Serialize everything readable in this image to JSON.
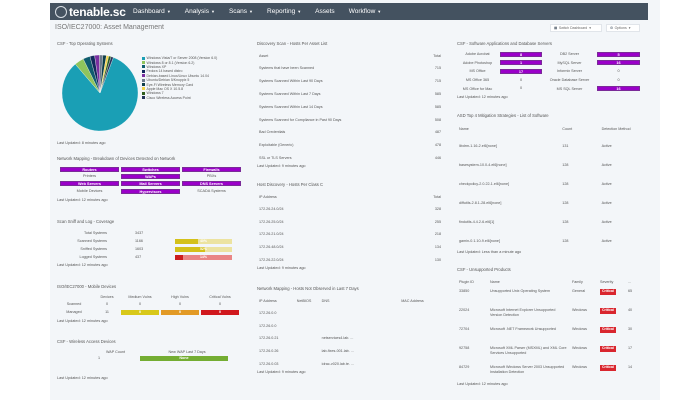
{
  "navbar": {
    "logo": "tenable.sc",
    "items": [
      {
        "label": "Dashboard",
        "caret": true
      },
      {
        "label": "Analysis",
        "caret": true
      },
      {
        "label": "Scans",
        "caret": true
      },
      {
        "label": "Reporting",
        "caret": true
      },
      {
        "label": "Assets",
        "caret": false
      },
      {
        "label": "Workflow",
        "caret": true
      }
    ]
  },
  "page": {
    "title": "ISO/IEC27000: Asset Management",
    "switch_dashboard": "Switch Dashboard",
    "options": "Options"
  },
  "os_panel": {
    "title": "CSF - Top Operating Systems",
    "legend": [
      {
        "label": "Windows Vista/7 or Server 2008 (Version 6.0)",
        "color": "#1a9fb5"
      },
      {
        "label": "Windows 8 or 8.1 (Version 6.2)",
        "color": "#8fc45c"
      },
      {
        "label": "Windows XP",
        "color": "#0f5c6e"
      },
      {
        "label": "Fedora 14 based distro",
        "color": "#12295c"
      },
      {
        "label": "Debian-based Linux/Linux Ubuntu 14.04",
        "color": "#7a2fa0"
      },
      {
        "label": "Ubuntu/Debian 5/Knoppix 5",
        "color": "#6d7a8a"
      },
      {
        "label": "Eye-Fi Wireless Memory Card",
        "color": "#0f3e4a"
      },
      {
        "label": "Apple Mac OS X 10.5.8",
        "color": "#f3d34a"
      },
      {
        "label": "Windows 7",
        "color": "#2f5e1e"
      },
      {
        "label": "Cisco Wireless Access Point",
        "color": "#25335a"
      }
    ],
    "updated": "Last Updated: 8 minutes ago"
  },
  "chart_data": {
    "type": "pie",
    "title": "CSF - Top Operating Systems",
    "categories": [
      "Windows Vista/7 or Server 2008 (Version 6.0)",
      "Windows 8 or 8.1 (Version 6.2)",
      "Windows XP",
      "Fedora 14 based distro",
      "Debian-based Linux/Linux Ubuntu 14.04",
      "Ubuntu/Debian 5/Knoppix 5",
      "Eye-Fi Wireless Memory Card",
      "Apple Mac OS X 10.5.8",
      "Windows 7",
      "Cisco Wireless Access Point"
    ],
    "values": [
      83,
      4,
      3,
      2,
      2,
      1.5,
      1.5,
      1,
      1,
      1
    ],
    "legend_position": "right"
  },
  "netmap_panel": {
    "title": "Network Mapping - Breakdown of Devices Detected on Network",
    "cells": [
      {
        "label": "Routers",
        "active": true
      },
      {
        "label": "Switches",
        "active": true
      },
      {
        "label": "Firewalls",
        "active": true
      },
      {
        "label": "Printers",
        "active": false
      },
      {
        "label": "WAPs",
        "active": true
      },
      {
        "label": "PBXs",
        "active": false
      },
      {
        "label": "Web Servers",
        "active": true
      },
      {
        "label": "Mail Servers",
        "active": true
      },
      {
        "label": "DNS Servers",
        "active": true
      },
      {
        "label": "Mobile Devices",
        "active": false
      },
      {
        "label": "Hypervisors",
        "active": true
      },
      {
        "label": "SCADA Systems",
        "active": false
      }
    ],
    "updated": "Last Updated: 12 minutes ago"
  },
  "coverage_panel": {
    "title": "Scan Sniff and Log - Coverage",
    "rows": [
      {
        "label": "Total Systems",
        "value": "3437",
        "pct": null
      },
      {
        "label": "Scanned Systems",
        "value": "1166",
        "pct": "40%",
        "fill": 0.4,
        "color": "#d4c11a",
        "bg": "#ece3a0"
      },
      {
        "label": "Sniffed Systems",
        "value": "1603",
        "pct": "52%",
        "fill": 0.52,
        "color": "#d4c11a",
        "bg": "#ece3a0"
      },
      {
        "label": "Logged Systems",
        "value": "437",
        "pct": "14%",
        "fill": 0.14,
        "color": "#cc1d1d",
        "bg": "#e98585"
      }
    ],
    "updated": "Last Updated: 12 minutes ago"
  },
  "mobile_panel": {
    "title": "ISO/IEC27000 - Mobile Devices",
    "headers": [
      "",
      "Devices",
      "Medium Vulns",
      "High Vulns",
      "Critical Vulns"
    ],
    "rows": [
      {
        "label": "Scanned",
        "devices": "0",
        "medium": "0",
        "high": "0",
        "critical": "0",
        "colored": false
      },
      {
        "label": "Managed",
        "devices": "11",
        "medium": "0",
        "high": "0",
        "critical": "0",
        "colored": true
      }
    ],
    "colors": {
      "medium": "#d8c81a",
      "high": "#e29a26",
      "critical": "#d0181e"
    },
    "updated": "Last Updated: 12 minutes ago"
  },
  "wireless_panel": {
    "title": "CSF - Wireless Access Devices",
    "col1": "WAP Count",
    "col2": "New WAP Last 7 Days",
    "count": "1",
    "new_label": "None",
    "updated": "Last Updated: 12 minutes ago"
  },
  "discovery_panel": {
    "title": "Discovery Scan - Hosts Per Asset List",
    "headers": [
      "Asset",
      "Total"
    ],
    "rows": [
      {
        "asset": "Systems that have been Scanned",
        "total": "715"
      },
      {
        "asset": "Systems Scanned Within Last 90 Days",
        "total": "715"
      },
      {
        "asset": "Systems Scanned Within Last 7 Days",
        "total": "585"
      },
      {
        "asset": "Systems Scanned Within Last 14 Days",
        "total": "585"
      },
      {
        "asset": "Systems Scanned for Compliance in Past 90 Days",
        "total": "508"
      },
      {
        "asset": "Bad Credentials",
        "total": "487"
      },
      {
        "asset": "Exploitable (Generic)",
        "total": "478"
      },
      {
        "asset": "SSL or TLS Servers",
        "total": "446"
      }
    ],
    "updated": "Last Updated: 9 minutes ago"
  },
  "hostclass_panel": {
    "title": "Host Discovery - Hosts Per Class C",
    "headers": [
      "IP Address",
      "Total"
    ],
    "rows": [
      {
        "ip": "172.26.24.0/24",
        "total": "328"
      },
      {
        "ip": "172.26.25.0/24",
        "total": "255"
      },
      {
        "ip": "172.26.21.0/24",
        "total": "218"
      },
      {
        "ip": "172.26.48.0/24",
        "total": "134"
      },
      {
        "ip": "172.26.22.0/24",
        "total": "130"
      }
    ],
    "updated": "Last Updated: 9 minutes ago"
  },
  "notobserved_panel": {
    "title": "Network Mapping - Hosts Not Observed in Last 7 Days",
    "headers": [
      "IP Address",
      "NetBIOS",
      "DNS",
      "MAC Address"
    ],
    "rows": [
      {
        "ip": "172.26.0.0",
        "netbios": "",
        "dns": "",
        "mac": ""
      },
      {
        "ip": "172.26.0.0",
        "netbios": "",
        "dns": "",
        "mac": ""
      },
      {
        "ip": "172.26.0.21",
        "netbios": "",
        "dns": "netservices4.lab. ...",
        "mac": ""
      },
      {
        "ip": "172.26.0.26",
        "netbios": "",
        "dns": "lab-fixes-001.lab. ...",
        "mac": ""
      },
      {
        "ip": "172.26.0.03",
        "netbios": "",
        "dns": "idrac-v020.lab.te. ...",
        "mac": ""
      }
    ],
    "updated": "Last Updated: 9 minutes ago"
  },
  "software_panel": {
    "title": "CSF - Software Applications and Database Servers",
    "rows": [
      {
        "l1": "Adobe Acrobat",
        "v1": "8",
        "p1": true,
        "l2": "DB2 Server",
        "v2": "5",
        "p2": true
      },
      {
        "l1": "Adobe Photoshop",
        "v1": "1",
        "p1": true,
        "l2": "MySQL Server",
        "v2": "16",
        "p2": true
      },
      {
        "l1": "MS Office",
        "v1": "17",
        "p1": true,
        "l2": "Informix Server",
        "v2": "0",
        "p2": false
      },
      {
        "l1": "MS Office 365",
        "v1": "0",
        "p1": false,
        "l2": "Oracle Database Server",
        "v2": "0",
        "p2": false
      },
      {
        "l1": "MS Office for Mac",
        "v1": "0",
        "p1": false,
        "l2": "MS SQL Server",
        "v2": "16",
        "p2": true
      }
    ],
    "updated": "Last Updated: 12 minutes ago"
  },
  "asd_panel": {
    "title": "ASD Top 4 Mitigation Strategies - List of Software",
    "headers": [
      "Name",
      "Count",
      "Detection Method"
    ],
    "rows": [
      {
        "name": "libdrm-1.16-2.el6[none]",
        "count": "131",
        "method": "Active"
      },
      {
        "name": "basesystem-10.0-4.el6[none]",
        "count": "128",
        "method": "Active"
      },
      {
        "name": "checkpolicy-2.0.22-1.el6[none]",
        "count": "128",
        "method": "Active"
      },
      {
        "name": "diffutils-2.8.1-28.el6[none]",
        "count": "128",
        "method": "Active"
      },
      {
        "name": "findutils-4.4.2-6.el6[1]",
        "count": "128",
        "method": "Active"
      },
      {
        "name": "gamin-0.1.10-9.el6[none]",
        "count": "128",
        "method": "Active"
      }
    ],
    "updated": "Last Updated: Less than a minute ago"
  },
  "unsupported_panel": {
    "title": "CSF - Unsupported Products",
    "headers": [
      "Plugin ID",
      "Name",
      "Family",
      "Severity",
      "..."
    ],
    "rows": [
      {
        "id": "33850",
        "name": "Unsupported Unix Operating System",
        "family": "General",
        "severity": "Critical",
        "count": "65"
      },
      {
        "id": "22024",
        "name": "Microsoft Internet Explorer Unsupported Version Detection",
        "family": "Windows",
        "severity": "Critical",
        "count": "40"
      },
      {
        "id": "72704",
        "name": "Microsoft .NET Framework Unsupported",
        "family": "Windows",
        "severity": "Critical",
        "count": "30"
      },
      {
        "id": "92758",
        "name": "Microsoft XML Parser (MSXML) and XML Core Services Unsupported",
        "family": "Windows",
        "severity": "Critical",
        "count": "17"
      },
      {
        "id": "84729",
        "name": "Microsoft Windows Server 2003 Unsupported Installation Detection",
        "family": "Windows",
        "severity": "Critical",
        "count": "14"
      }
    ],
    "updated": "Last Updated: 12 minutes ago"
  }
}
